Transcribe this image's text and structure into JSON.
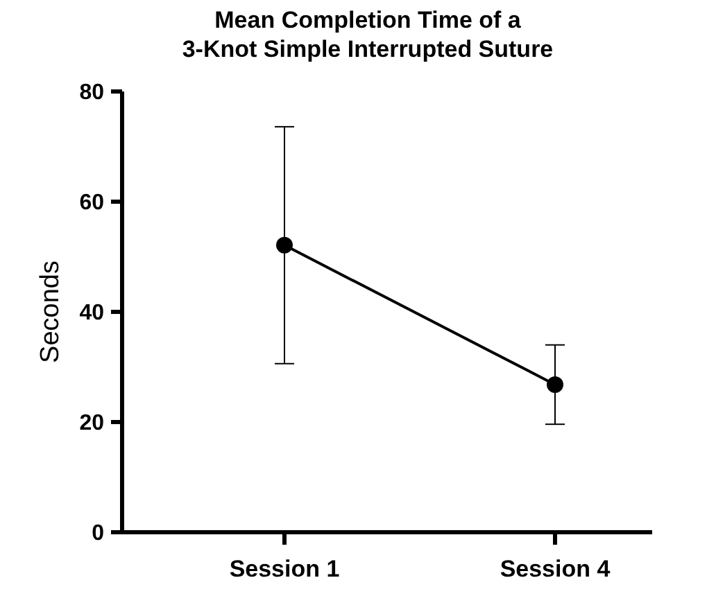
{
  "chart_data": {
    "type": "line",
    "title": "Mean Completion Time of a\n3-Knot Simple Interrupted Suture",
    "ylabel": "Seconds",
    "categories": [
      "Session 1",
      "Session 4"
    ],
    "series": [
      {
        "color": "#000000",
        "values": [
          52.1,
          26.8
        ],
        "errors": [
          21.5,
          7.2
        ]
      }
    ],
    "ylim": [
      0,
      80
    ],
    "yticks": [
      0,
      20,
      40,
      60,
      80
    ],
    "grid": false,
    "marker": "circle",
    "line_style": "solid"
  }
}
